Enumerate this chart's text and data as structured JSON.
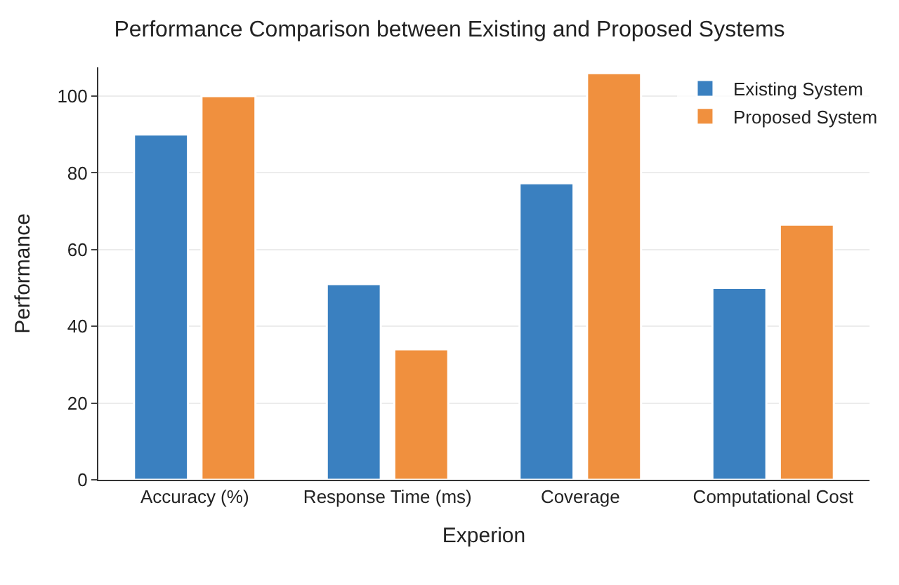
{
  "chart_data": {
    "type": "bar",
    "title": "Performance Comparison between Existing and Proposed Systems",
    "xlabel": "Experion",
    "ylabel": "Performance",
    "categories": [
      "Accuracy (%)",
      "Response Time (ms)",
      "Coverage",
      "Computational Cost"
    ],
    "series": [
      {
        "name": "Existing System",
        "color": "#3a80c0",
        "values": [
          90,
          51,
          77.3,
          50
        ]
      },
      {
        "name": "Proposed System",
        "color": "#f0903e",
        "values": [
          100,
          34,
          106,
          66.5
        ]
      }
    ],
    "ylim": [
      0,
      107.5
    ],
    "yticks": [
      0,
      20,
      40,
      60,
      80,
      100
    ],
    "grid": "y",
    "legend": "top right"
  }
}
